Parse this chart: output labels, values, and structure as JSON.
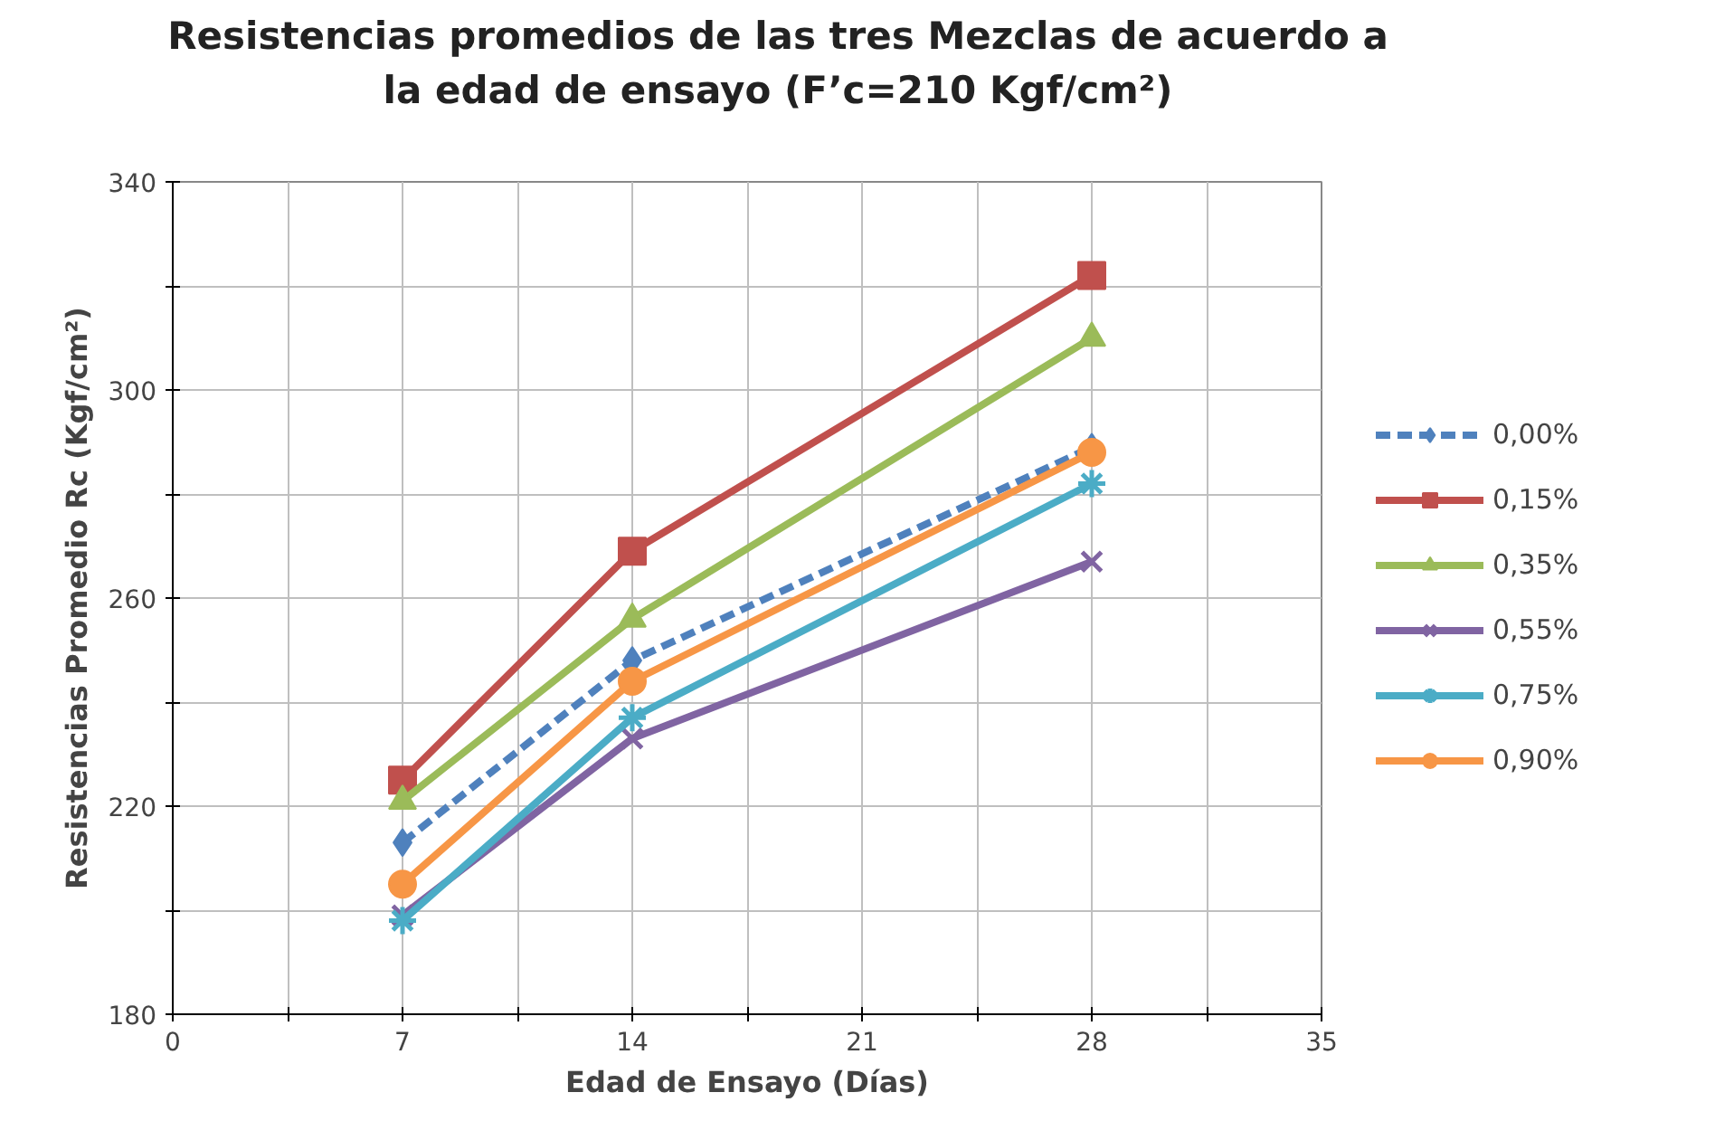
{
  "chart_data": {
    "type": "line",
    "title": "Resistencias promedios de las tres Mezclas de acuerdo a la edad de ensayo (F’c=210 Kgf/cm²)",
    "xlabel": "Edad de Ensayo (Días)",
    "ylabel": "Resistencias Promedio Rc (Kgf/cm²)",
    "x": [
      7,
      14,
      28
    ],
    "xlim": [
      0,
      35
    ],
    "xticks": [
      0,
      {
        "value": 3.5,
        "label": null
      },
      7,
      {
        "value": 10.5,
        "label": null
      },
      14,
      {
        "value": 17.5,
        "label": null
      },
      21,
      {
        "value": 24.5,
        "label": null
      },
      28,
      {
        "value": 31.5,
        "label": null
      },
      35
    ],
    "ylim": [
      180,
      340
    ],
    "yticks": [
      180,
      {
        "value": 200,
        "label": null
      },
      220,
      {
        "value": 240,
        "label": null
      },
      260,
      {
        "value": 280,
        "label": null
      },
      300,
      {
        "value": 320,
        "label": null
      },
      340
    ],
    "grid": true,
    "legend": "right",
    "series": [
      {
        "name": "0,00%",
        "color": "#4f81bd",
        "values": [
          213,
          248,
          289
        ],
        "marker": "diamond",
        "line_style": "dashed"
      },
      {
        "name": "0,15%",
        "color": "#c0504d",
        "values": [
          225,
          269,
          322
        ],
        "marker": "square",
        "line_style": "solid"
      },
      {
        "name": "0,35%",
        "color": "#9bbb59",
        "values": [
          221,
          256,
          310
        ],
        "marker": "triangle",
        "line_style": "solid"
      },
      {
        "name": "0,55%",
        "color": "#8064a2",
        "values": [
          199,
          233,
          267
        ],
        "marker": "x",
        "line_style": "solid"
      },
      {
        "name": "0,75%",
        "color": "#4bacc6",
        "values": [
          198,
          237,
          282
        ],
        "marker": "cross",
        "line_style": "solid"
      },
      {
        "name": "0,90%",
        "color": "#f79646",
        "values": [
          205,
          244,
          288
        ],
        "marker": "circle",
        "line_style": "solid"
      }
    ]
  }
}
